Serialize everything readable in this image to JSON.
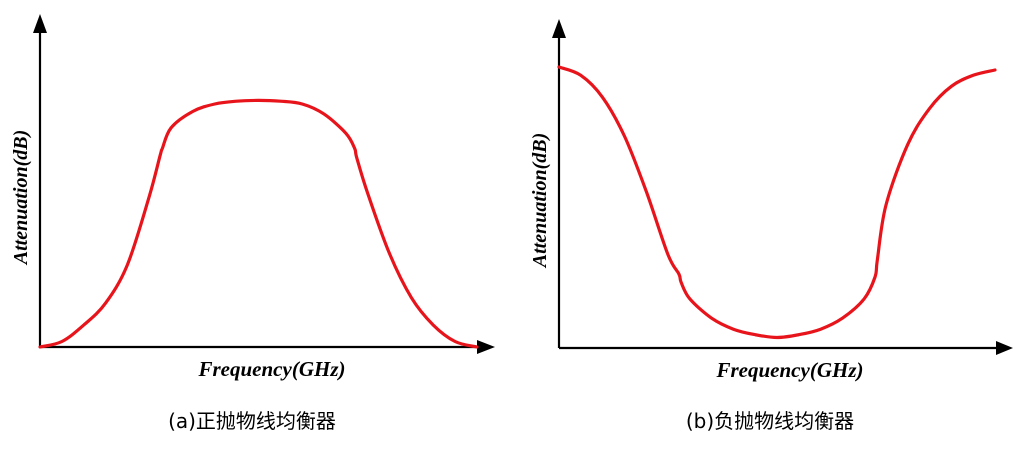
{
  "chart_data": [
    {
      "type": "line",
      "caption": "(a)正抛物线均衡器",
      "xlabel": "Frequency(GHz)",
      "ylabel": "Attenuation(dB)",
      "grid": false,
      "xlim": [
        0,
        100
      ],
      "ylim": [
        0,
        100
      ],
      "series": [
        {
          "color": "#e8141b",
          "x": [
            0,
            5,
            10,
            15,
            20,
            25,
            27.5,
            28,
            30,
            35,
            40,
            45,
            50,
            55,
            60,
            65,
            70,
            72,
            72.5,
            75,
            80,
            85,
            90,
            95,
            100
          ],
          "y": [
            0,
            2,
            8,
            16,
            30,
            55,
            70,
            72.5,
            80,
            86,
            88.7,
            89.7,
            90,
            89.7,
            88.7,
            85,
            78,
            72.5,
            69,
            56,
            34,
            18,
            8,
            2,
            0
          ]
        }
      ]
    },
    {
      "type": "line",
      "caption": "(b)负抛物线均衡器",
      "xlabel": "Frequency(GHz)",
      "ylabel": "Attenuation(dB)",
      "grid": false,
      "xlim": [
        0,
        100
      ],
      "ylim": [
        0,
        100
      ],
      "series": [
        {
          "color": "#e8141b",
          "x": [
            0,
            5,
            10,
            15,
            20,
            25,
            27.5,
            28,
            30,
            35,
            40,
            45,
            50,
            55,
            60,
            65,
            70,
            72.5,
            73,
            75,
            80,
            85,
            90,
            95,
            100
          ],
          "y": [
            100,
            97,
            89,
            75,
            55,
            32,
            25,
            22,
            16,
            9,
            5,
            3,
            2,
            3,
            5,
            9,
            16,
            24,
            30,
            50,
            72,
            85,
            93,
            97,
            98.9
          ]
        }
      ]
    }
  ]
}
